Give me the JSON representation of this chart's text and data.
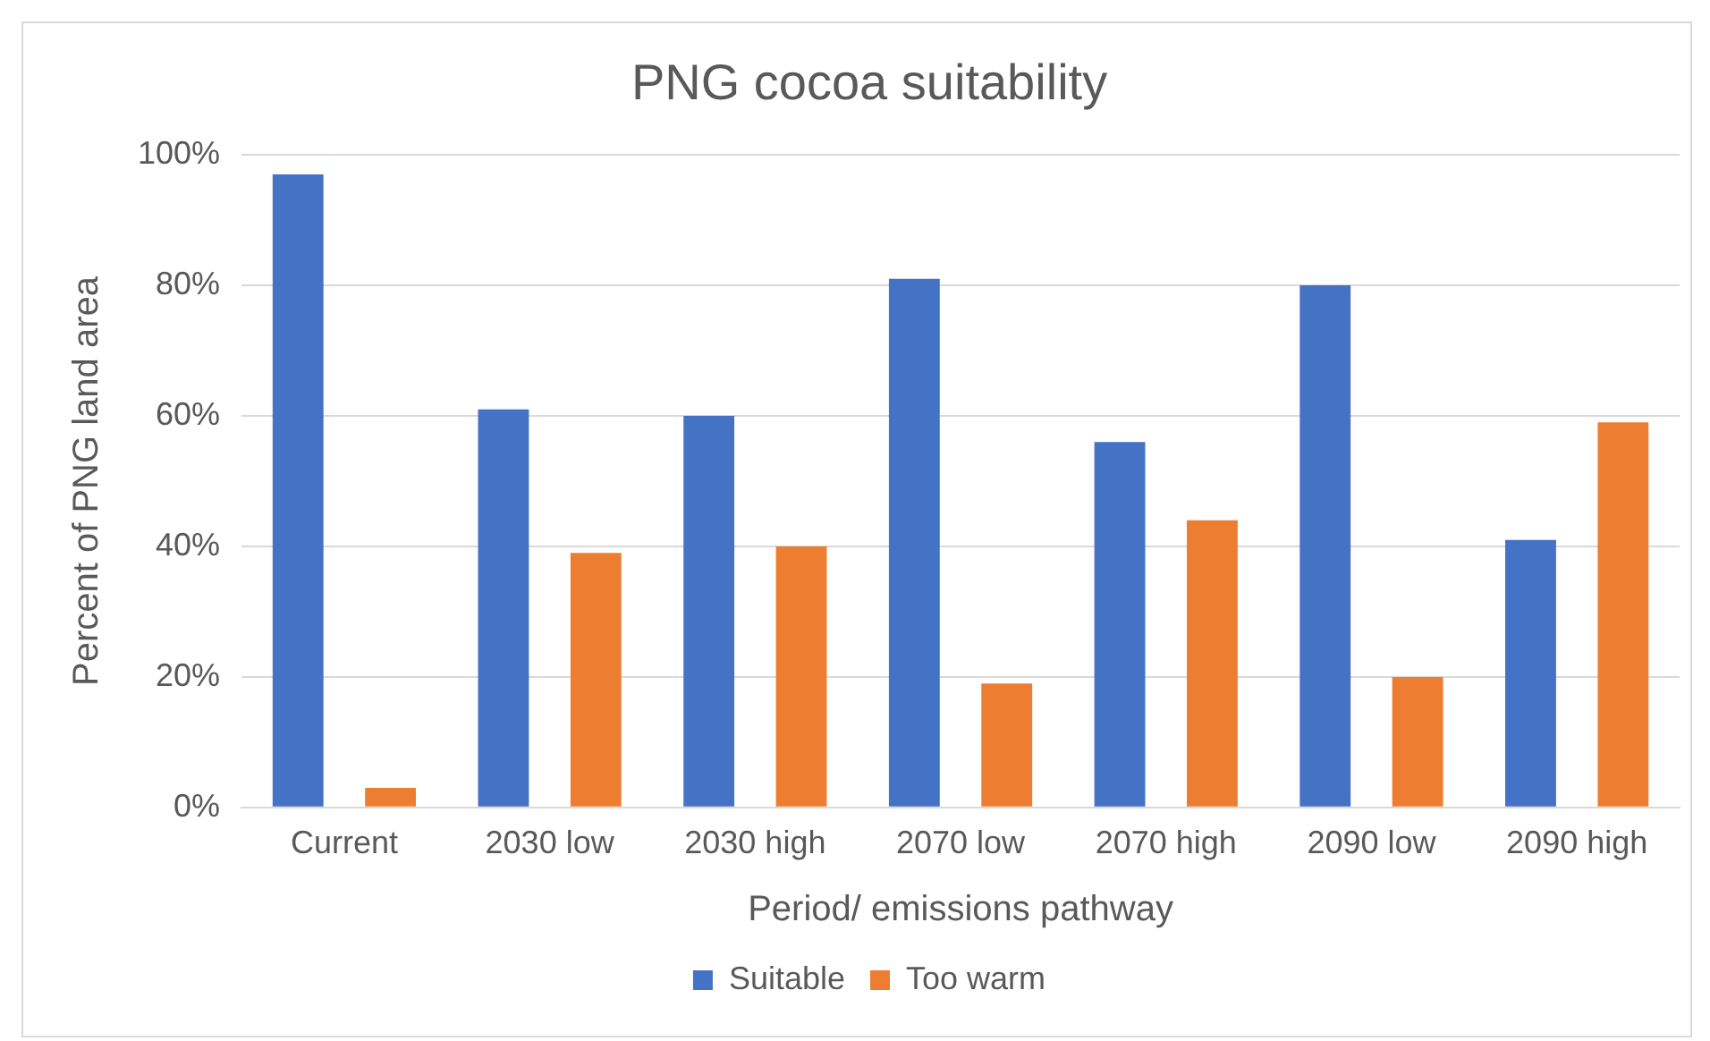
{
  "chart_data": {
    "type": "bar",
    "title": "PNG cocoa suitability",
    "xlabel": "Period/ emissions pathway",
    "ylabel": "Percent of PNG land area",
    "categories": [
      "Current",
      "2030 low",
      "2030 high",
      "2070 low",
      "2070 high",
      "2090 low",
      "2090 high"
    ],
    "series": [
      {
        "name": "Suitable",
        "color": "#4472c4",
        "values": [
          97,
          61,
          60,
          81,
          56,
          80,
          41
        ]
      },
      {
        "name": "Too warm",
        "color": "#ed7d31",
        "values": [
          3,
          39,
          40,
          19,
          44,
          20,
          59
        ]
      }
    ],
    "ylim": [
      0,
      100
    ],
    "yticks": [
      {
        "value": 0,
        "label": "0%"
      },
      {
        "value": 20,
        "label": "20%"
      },
      {
        "value": 40,
        "label": "40%"
      },
      {
        "value": 60,
        "label": "60%"
      },
      {
        "value": 80,
        "label": "80%"
      },
      {
        "value": 100,
        "label": "100%"
      }
    ],
    "grid": "y",
    "legend": "bottom"
  }
}
